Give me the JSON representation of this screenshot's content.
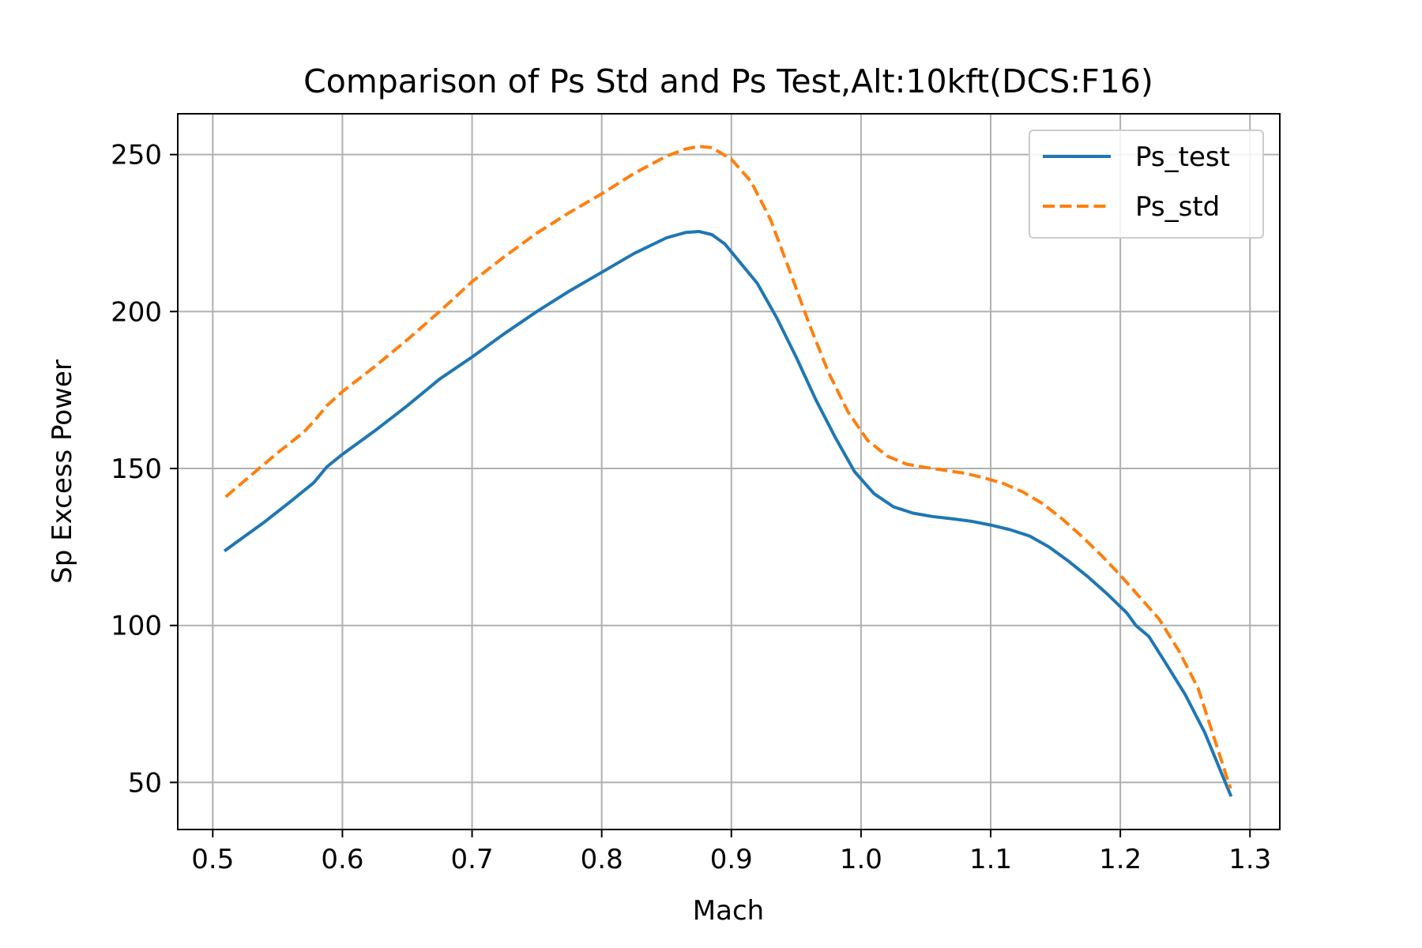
{
  "chart_data": {
    "type": "line",
    "title": "Comparison of Ps Std and Ps Test,Alt:10kft(DCS:F16)",
    "xlabel": "Mach",
    "ylabel": "Sp Excess Power",
    "xlim": [
      0.473,
      1.323
    ],
    "ylim": [
      35,
      263
    ],
    "xticks": [
      0.5,
      0.6,
      0.7,
      0.8,
      0.9,
      1.0,
      1.1,
      1.2,
      1.3
    ],
    "xtick_labels": [
      "0.5",
      "0.6",
      "0.7",
      "0.8",
      "0.9",
      "1.0",
      "1.1",
      "1.2",
      "1.3"
    ],
    "yticks": [
      50,
      100,
      150,
      200,
      250
    ],
    "ytick_labels": [
      "50",
      "100",
      "150",
      "200",
      "250"
    ],
    "grid": true,
    "legend_position": "top-right",
    "series": [
      {
        "name": "Ps_test",
        "color": "#1f77b4",
        "dash": "solid",
        "x": [
          0.51,
          0.52,
          0.54,
          0.56,
          0.578,
          0.588,
          0.6,
          0.625,
          0.65,
          0.675,
          0.7,
          0.725,
          0.75,
          0.775,
          0.8,
          0.825,
          0.85,
          0.865,
          0.875,
          0.885,
          0.895,
          0.905,
          0.92,
          0.935,
          0.95,
          0.965,
          0.98,
          0.995,
          1.01,
          1.025,
          1.04,
          1.055,
          1.07,
          1.085,
          1.1,
          1.115,
          1.13,
          1.145,
          1.16,
          1.175,
          1.19,
          1.205,
          1.212,
          1.222,
          1.235,
          1.25,
          1.265,
          1.285
        ],
        "values": [
          124,
          127,
          133,
          139.5,
          145.5,
          150.5,
          154.5,
          162,
          170,
          178.5,
          185.5,
          193,
          200,
          206.5,
          212.5,
          218.5,
          223.5,
          225.2,
          225.5,
          224.5,
          221.5,
          216.5,
          209,
          198,
          185.5,
          172,
          160,
          149,
          142,
          137.8,
          135.8,
          134.7,
          134,
          133.2,
          132,
          130.5,
          128.5,
          125,
          120.5,
          115.5,
          110,
          104,
          100,
          96.5,
          88,
          78,
          66,
          46
        ]
      },
      {
        "name": "Ps_std",
        "color": "#ff7f0e",
        "dash": "dashed",
        "x": [
          0.51,
          0.53,
          0.55,
          0.57,
          0.578,
          0.588,
          0.6,
          0.625,
          0.65,
          0.675,
          0.7,
          0.725,
          0.75,
          0.775,
          0.8,
          0.825,
          0.85,
          0.865,
          0.875,
          0.885,
          0.9,
          0.915,
          0.93,
          0.945,
          0.96,
          0.975,
          0.99,
          1.005,
          1.02,
          1.035,
          1.05,
          1.065,
          1.08,
          1.095,
          1.11,
          1.125,
          1.14,
          1.155,
          1.17,
          1.185,
          1.2,
          1.215,
          1.23,
          1.245,
          1.26,
          1.285
        ],
        "values": [
          141,
          148,
          155,
          161.5,
          165,
          170,
          174.5,
          182.5,
          191,
          200,
          209.5,
          217.5,
          225,
          231.5,
          237.5,
          244,
          249.5,
          251.8,
          252.6,
          252.2,
          248.5,
          241.5,
          229.5,
          213,
          196,
          180.5,
          168,
          159,
          154,
          151.4,
          150.3,
          149.4,
          148.5,
          147,
          145.2,
          142.5,
          138.8,
          134,
          128.5,
          122.5,
          116,
          109,
          102,
          92,
          80,
          48
        ]
      }
    ]
  }
}
